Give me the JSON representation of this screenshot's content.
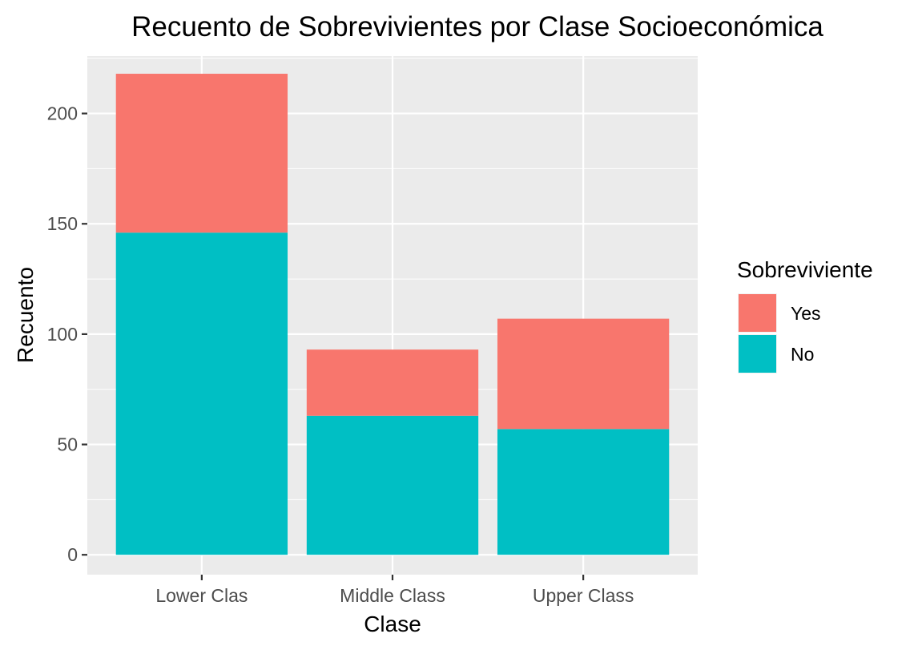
{
  "chart_data": {
    "type": "bar",
    "stacked": true,
    "title": "Recuento de Sobrevivientes por Clase Socioeconómica",
    "xlabel": "Clase",
    "ylabel": "Recuento",
    "categories": [
      "Lower Clas",
      "Middle Class",
      "Upper Class"
    ],
    "series": [
      {
        "name": "No",
        "values": [
          146,
          63,
          57
        ],
        "color": "#00BFC4"
      },
      {
        "name": "Yes",
        "values": [
          72,
          30,
          50
        ],
        "color": "#F8766D"
      }
    ],
    "ylim": [
      -9,
      226
    ],
    "yticks": [
      0,
      50,
      100,
      150,
      200
    ],
    "grid": true,
    "legend": {
      "title": "Sobreviviente",
      "position": "right",
      "entries": [
        {
          "label": "Yes",
          "color": "#F8766D"
        },
        {
          "label": "No",
          "color": "#00BFC4"
        }
      ]
    }
  }
}
